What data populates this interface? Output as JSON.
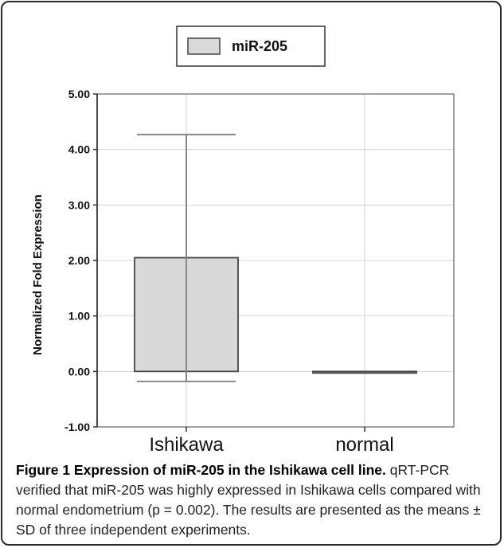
{
  "chart_data": {
    "type": "bar",
    "categories": [
      "Ishikawa",
      "normal"
    ],
    "series": [
      {
        "name": "miR-205",
        "values": [
          2.05,
          0.0
        ],
        "error_upper": [
          4.27,
          0.0
        ],
        "error_lower": [
          -0.18,
          0.0
        ]
      }
    ],
    "ylabel": "Normalized Fold Expression",
    "xlabel": "",
    "ylim": [
      -1.0,
      5.0
    ],
    "yticks": [
      "5.00",
      "4.00",
      "3.00",
      "2.00",
      "1.00",
      "0.00",
      "-1.00"
    ],
    "grid": true,
    "legend": "top-center",
    "colors": {
      "bar": "#d9d9d9",
      "bar_edge": "#444444",
      "grid": "#d4d4d4",
      "errorbar": "#888888"
    }
  },
  "caption": {
    "title": "Figure 1 Expression of miR-205 in the Ishikawa cell line.",
    "text": " qRT-PCR verified that miR-205 was highly expressed in Ishikawa cells compared with normal endometrium (p = 0.002). The results are presented as the means ± SD of three independent experiments."
  }
}
